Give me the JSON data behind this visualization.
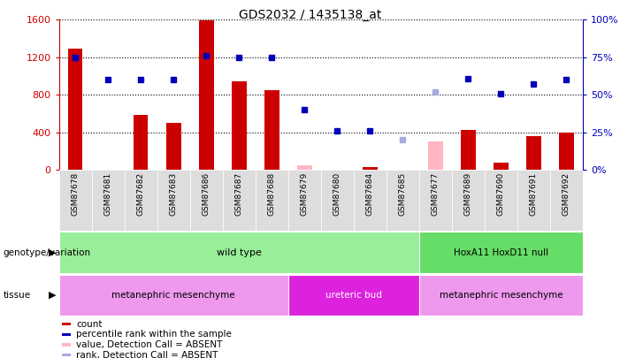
{
  "title": "GDS2032 / 1435138_at",
  "samples": [
    "GSM87678",
    "GSM87681",
    "GSM87682",
    "GSM87683",
    "GSM87686",
    "GSM87687",
    "GSM87688",
    "GSM87679",
    "GSM87680",
    "GSM87684",
    "GSM87685",
    "GSM87677",
    "GSM87689",
    "GSM87690",
    "GSM87691",
    "GSM87692"
  ],
  "count_values": [
    1290,
    0,
    590,
    500,
    1590,
    940,
    850,
    0,
    0,
    30,
    50,
    0,
    430,
    80,
    360,
    400
  ],
  "count_present": [
    true,
    false,
    true,
    true,
    true,
    true,
    true,
    false,
    false,
    true,
    false,
    false,
    true,
    true,
    true,
    true
  ],
  "absent_count_vals": [
    null,
    null,
    null,
    null,
    null,
    null,
    null,
    50,
    null,
    null,
    null,
    300,
    null,
    null,
    null,
    null
  ],
  "rank_values": [
    75,
    60,
    60,
    60,
    76,
    75,
    75,
    40,
    26,
    26,
    20,
    52,
    61,
    51,
    57,
    60
  ],
  "rank_present": [
    true,
    true,
    true,
    true,
    true,
    true,
    true,
    true,
    true,
    true,
    false,
    false,
    true,
    true,
    true,
    true
  ],
  "absent_rank_vals": [
    null,
    null,
    null,
    null,
    null,
    null,
    null,
    null,
    null,
    null,
    20,
    52,
    null,
    null,
    null,
    null
  ],
  "ylim_left": [
    0,
    1600
  ],
  "ylim_right": [
    0,
    100
  ],
  "yticks_left": [
    0,
    400,
    800,
    1200,
    1600
  ],
  "yticks_right": [
    0,
    25,
    50,
    75,
    100
  ],
  "bar_color": "#CC0000",
  "rank_color": "#0000BB",
  "absent_bar_color": "#FFB6C1",
  "absent_rank_color": "#AAAADD",
  "genotype_groups": [
    {
      "label": "wild type",
      "start": 0,
      "end": 10,
      "color": "#99EE99"
    },
    {
      "label": "HoxA11 HoxD11 null",
      "start": 11,
      "end": 15,
      "color": "#66DD66"
    }
  ],
  "tissue_groups": [
    {
      "label": "metanephric mesenchyme",
      "start": 0,
      "end": 6,
      "color": "#EE99EE"
    },
    {
      "label": "ureteric bud",
      "start": 7,
      "end": 10,
      "color": "#DD22DD"
    },
    {
      "label": "metanephric mesenchyme",
      "start": 11,
      "end": 15,
      "color": "#EE99EE"
    }
  ],
  "legend_items": [
    {
      "color": "#CC0000",
      "label": "count"
    },
    {
      "color": "#0000BB",
      "label": "percentile rank within the sample"
    },
    {
      "color": "#FFB6C1",
      "label": "value, Detection Call = ABSENT"
    },
    {
      "color": "#AAAADD",
      "label": "rank, Detection Call = ABSENT"
    }
  ],
  "axis_color_left": "#CC0000",
  "axis_color_right": "#0000BB"
}
